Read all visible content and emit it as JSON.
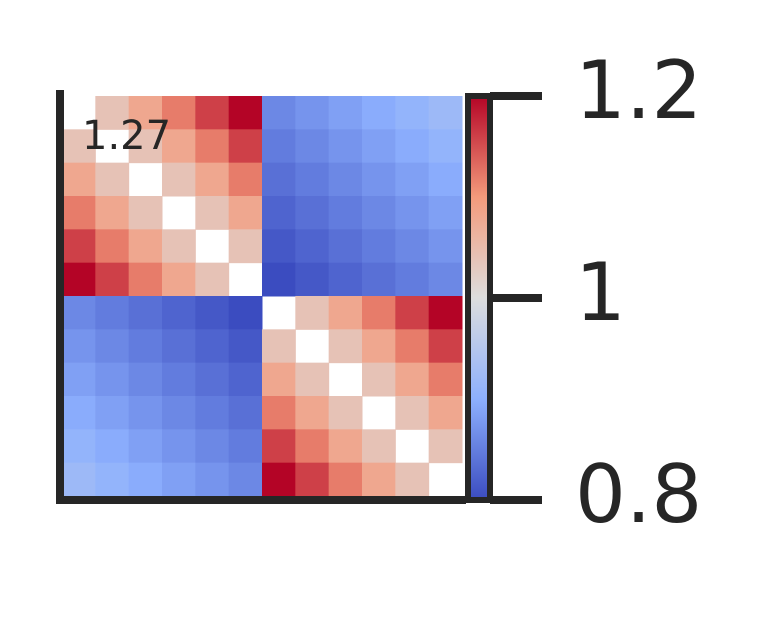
{
  "chart_data": {
    "type": "heatmap",
    "annotation": "1.27",
    "cmap": "coolwarm",
    "values": [
      [
        null,
        1.04,
        1.08,
        1.12,
        1.16,
        1.2,
        0.86,
        0.872,
        0.884,
        0.896,
        0.908,
        0.92
      ],
      [
        1.04,
        null,
        1.04,
        1.08,
        1.12,
        1.16,
        0.848,
        0.86,
        0.872,
        0.884,
        0.896,
        0.908
      ],
      [
        1.08,
        1.04,
        null,
        1.04,
        1.08,
        1.12,
        0.836,
        0.848,
        0.86,
        0.872,
        0.884,
        0.896
      ],
      [
        1.12,
        1.08,
        1.04,
        null,
        1.04,
        1.08,
        0.824,
        0.836,
        0.848,
        0.86,
        0.872,
        0.884
      ],
      [
        1.16,
        1.12,
        1.08,
        1.04,
        null,
        1.04,
        0.812,
        0.824,
        0.836,
        0.848,
        0.86,
        0.872
      ],
      [
        1.2,
        1.16,
        1.12,
        1.08,
        1.04,
        null,
        0.8,
        0.812,
        0.824,
        0.836,
        0.848,
        0.86
      ],
      [
        0.86,
        0.848,
        0.836,
        0.824,
        0.812,
        0.8,
        null,
        1.04,
        1.08,
        1.12,
        1.16,
        1.2
      ],
      [
        0.872,
        0.86,
        0.848,
        0.836,
        0.824,
        0.812,
        1.04,
        null,
        1.04,
        1.08,
        1.12,
        1.16
      ],
      [
        0.884,
        0.872,
        0.86,
        0.848,
        0.836,
        0.824,
        1.08,
        1.04,
        null,
        1.04,
        1.08,
        1.12
      ],
      [
        0.896,
        0.884,
        0.872,
        0.86,
        0.848,
        0.836,
        1.12,
        1.08,
        1.04,
        null,
        1.04,
        1.08
      ],
      [
        0.908,
        0.896,
        0.884,
        0.872,
        0.86,
        0.848,
        1.16,
        1.12,
        1.08,
        1.04,
        null,
        1.04
      ],
      [
        0.92,
        0.908,
        0.896,
        0.884,
        0.872,
        0.86,
        1.2,
        1.16,
        1.12,
        1.08,
        1.04,
        null
      ]
    ],
    "colorbar": {
      "lim": [
        0.8,
        1.2
      ],
      "ticks": [
        0.8,
        1,
        1.2
      ]
    }
  }
}
